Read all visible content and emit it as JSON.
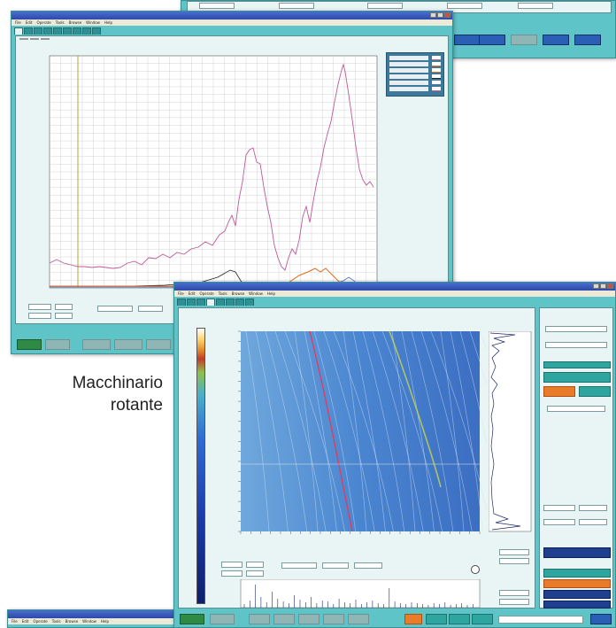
{
  "caption": {
    "line1": "Macchinario",
    "line2": "rotante"
  },
  "win_top": {
    "buttons": [
      "",
      "",
      "",
      "",
      ""
    ]
  },
  "win_main": {
    "title": "",
    "menu": [
      "File",
      "Edit",
      "Operate",
      "Tools",
      "Browse",
      "Window",
      "Help"
    ],
    "tabs": [
      "",
      "",
      "",
      "",
      "",
      "",
      "",
      "",
      ""
    ],
    "subtabs": [
      "",
      "",
      ""
    ],
    "legend": [
      "",
      "",
      "",
      "",
      "",
      ""
    ],
    "footer_buttons": [
      "",
      "",
      "",
      "",
      ""
    ]
  },
  "win_waterfall": {
    "title": "",
    "menu": [
      "File",
      "Edit",
      "Operate",
      "Tools",
      "Browse",
      "Window",
      "Help"
    ],
    "tabs": [
      "",
      "",
      "",
      "",
      "",
      "",
      "",
      ""
    ],
    "right_buttons": [
      "",
      "",
      "",
      "",
      "",
      "",
      "",
      "",
      "",
      "",
      ""
    ],
    "footer_buttons": [
      "",
      "",
      "",
      "",
      "",
      "",
      "",
      "",
      "",
      "",
      "",
      ""
    ]
  },
  "win_bottom": {
    "title": "",
    "menu": [
      "File",
      "Edit",
      "Operate",
      "Tools",
      "Browse",
      "Window",
      "Help"
    ]
  },
  "colors": {
    "frame": "#5fc4c7",
    "button_blue": "#2a5fb5",
    "button_orange": "#e87c2a",
    "button_green": "#2f8a45"
  }
}
